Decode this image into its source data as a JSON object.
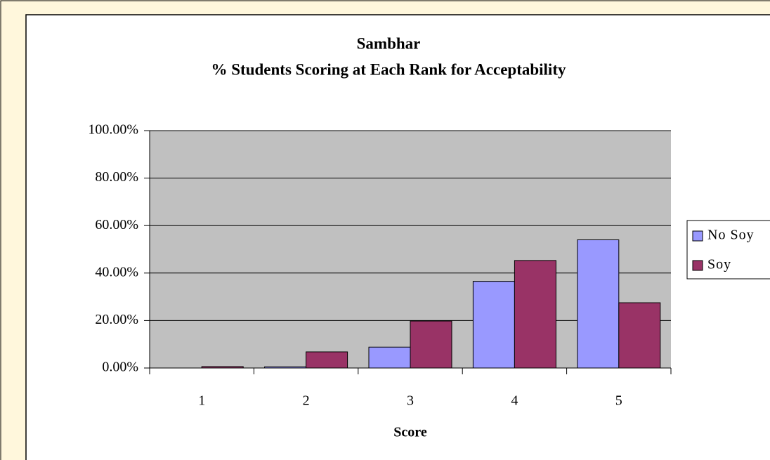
{
  "chart_data": {
    "type": "bar",
    "title": "Sambhar",
    "subtitle": "% Students Scoring at Each Rank for Acceptability",
    "x_label": "Score",
    "categories": [
      "1",
      "2",
      "3",
      "4",
      "5"
    ],
    "series": [
      {
        "name": "No Soy",
        "color": "#9999ff",
        "values": [
          0,
          0.5,
          8.8,
          36.5,
          54
        ]
      },
      {
        "name": "Soy",
        "color": "#993366",
        "values": [
          0.6,
          6.8,
          19.8,
          45.3,
          27.5
        ]
      }
    ],
    "ylim": [
      0,
      100
    ],
    "yticks": [
      {
        "value": 0,
        "label": "0.00%"
      },
      {
        "value": 20,
        "label": "20.00%"
      },
      {
        "value": 40,
        "label": "40.00%"
      },
      {
        "value": 60,
        "label": "60.00%"
      },
      {
        "value": 80,
        "label": "80.00%"
      },
      {
        "value": 100,
        "label": "100.00%"
      }
    ],
    "grid": true,
    "legend": "right"
  }
}
